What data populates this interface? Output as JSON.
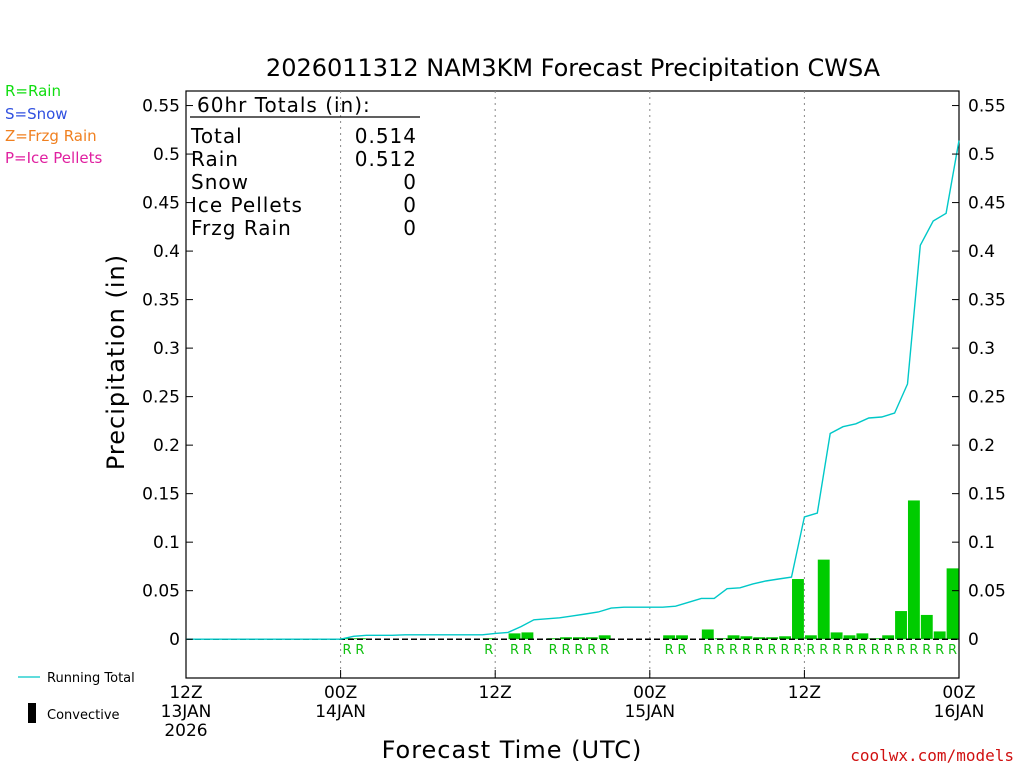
{
  "title": "2026011312 NAM3KM Forecast Precipitation CWSA",
  "colors": {
    "rain": "#00cc00",
    "running_total": "#00c8c8",
    "rain_key": "#10dd10",
    "snow_key": "#3050e0",
    "frzg_key": "#f08020",
    "ice_key": "#e020a0",
    "credit": "#d01010"
  },
  "precip_key": {
    "rain": "R=Rain",
    "snow": "S=Snow",
    "frzg": "Z=Frzg Rain",
    "ice": "P=Ice Pellets"
  },
  "totals": {
    "heading": "60hr Totals (in):",
    "rows": [
      {
        "label": "Total",
        "value": "0.514"
      },
      {
        "label": "Rain",
        "value": "0.512"
      },
      {
        "label": "Snow",
        "value": "0"
      },
      {
        "label": "Ice Pellets",
        "value": "0"
      },
      {
        "label": "Frzg Rain",
        "value": "0"
      }
    ]
  },
  "legend": {
    "running_total": "Running Total",
    "convective": "Convective"
  },
  "credit": "coolwx.com/models",
  "chart_data": {
    "type": "bar",
    "title": "2026011312 NAM3KM Forecast Precipitation CWSA",
    "xlabel": "Forecast Time (UTC)",
    "ylabel": "Precipitation (in)",
    "ylim": [
      -0.04,
      0.565
    ],
    "xlim_hours": [
      0,
      60
    ],
    "y_ticks": [
      "0",
      "0.05",
      "0.1",
      "0.15",
      "0.2",
      "0.25",
      "0.3",
      "0.35",
      "0.4",
      "0.45",
      "0.5",
      "0.55"
    ],
    "y_tick_values": [
      0,
      0.05,
      0.1,
      0.15,
      0.2,
      0.25,
      0.3,
      0.35,
      0.4,
      0.45,
      0.5,
      0.55
    ],
    "x_ticks": [
      {
        "hour": 0,
        "lines": [
          "12Z",
          "13JAN",
          "2026"
        ]
      },
      {
        "hour": 12,
        "lines": [
          "00Z",
          "14JAN"
        ]
      },
      {
        "hour": 24,
        "lines": [
          "12Z"
        ]
      },
      {
        "hour": 36,
        "lines": [
          "00Z",
          "15JAN"
        ]
      },
      {
        "hour": 48,
        "lines": [
          "12Z"
        ]
      },
      {
        "hour": 60,
        "lines": [
          "00Z",
          "16JAN"
        ]
      }
    ],
    "series": [
      {
        "name": "Hourly Rain",
        "type": "bar",
        "hours": [
          13,
          14,
          24,
          26,
          27,
          29,
          30,
          31,
          32,
          33,
          38,
          39,
          41,
          42,
          43,
          44,
          45,
          46,
          47,
          48,
          49,
          50,
          51,
          52,
          53,
          54,
          55,
          56,
          57,
          58,
          59,
          60
        ],
        "values": [
          0.001,
          0.001,
          0.001,
          0.006,
          0.007,
          0.001,
          0.002,
          0.002,
          0.002,
          0.004,
          0.004,
          0.004,
          0.01,
          0.001,
          0.004,
          0.003,
          0.002,
          0.002,
          0.003,
          0.062,
          0.004,
          0.082,
          0.007,
          0.004,
          0.006,
          0.001,
          0.004,
          0.029,
          0.143,
          0.025,
          0.008,
          0.073
        ],
        "labels": [
          "R",
          "R",
          "R",
          "R",
          "R",
          "R",
          "R",
          "R",
          "R",
          "R",
          "R",
          "R",
          "R",
          "R",
          "R",
          "R",
          "R",
          "R",
          "R",
          "R",
          "R",
          "R",
          "R",
          "R",
          "R",
          "R",
          "R",
          "R",
          "R",
          "R",
          "R",
          "R"
        ]
      },
      {
        "name": "Running Total",
        "type": "line",
        "hours": [
          0,
          12,
          13,
          14,
          15,
          16,
          17,
          18,
          19,
          20,
          21,
          22,
          23,
          24,
          25,
          26,
          27,
          28,
          29,
          30,
          31,
          32,
          33,
          34,
          35,
          36,
          37,
          38,
          39,
          40,
          41,
          42,
          43,
          44,
          45,
          46,
          47,
          48,
          49,
          50,
          51,
          52,
          53,
          54,
          55,
          56,
          57,
          58,
          59,
          60
        ],
        "values": [
          0,
          0,
          0.003,
          0.004,
          0.004,
          0.004,
          0.0045,
          0.0045,
          0.0045,
          0.0045,
          0.0045,
          0.0045,
          0.0045,
          0.006,
          0.007,
          0.013,
          0.02,
          0.021,
          0.022,
          0.024,
          0.026,
          0.028,
          0.032,
          0.033,
          0.033,
          0.033,
          0.033,
          0.034,
          0.038,
          0.042,
          0.042,
          0.052,
          0.053,
          0.057,
          0.06,
          0.062,
          0.064,
          0.126,
          0.13,
          0.212,
          0.219,
          0.222,
          0.228,
          0.229,
          0.233,
          0.263,
          0.406,
          0.431,
          0.439,
          0.514
        ]
      }
    ]
  }
}
